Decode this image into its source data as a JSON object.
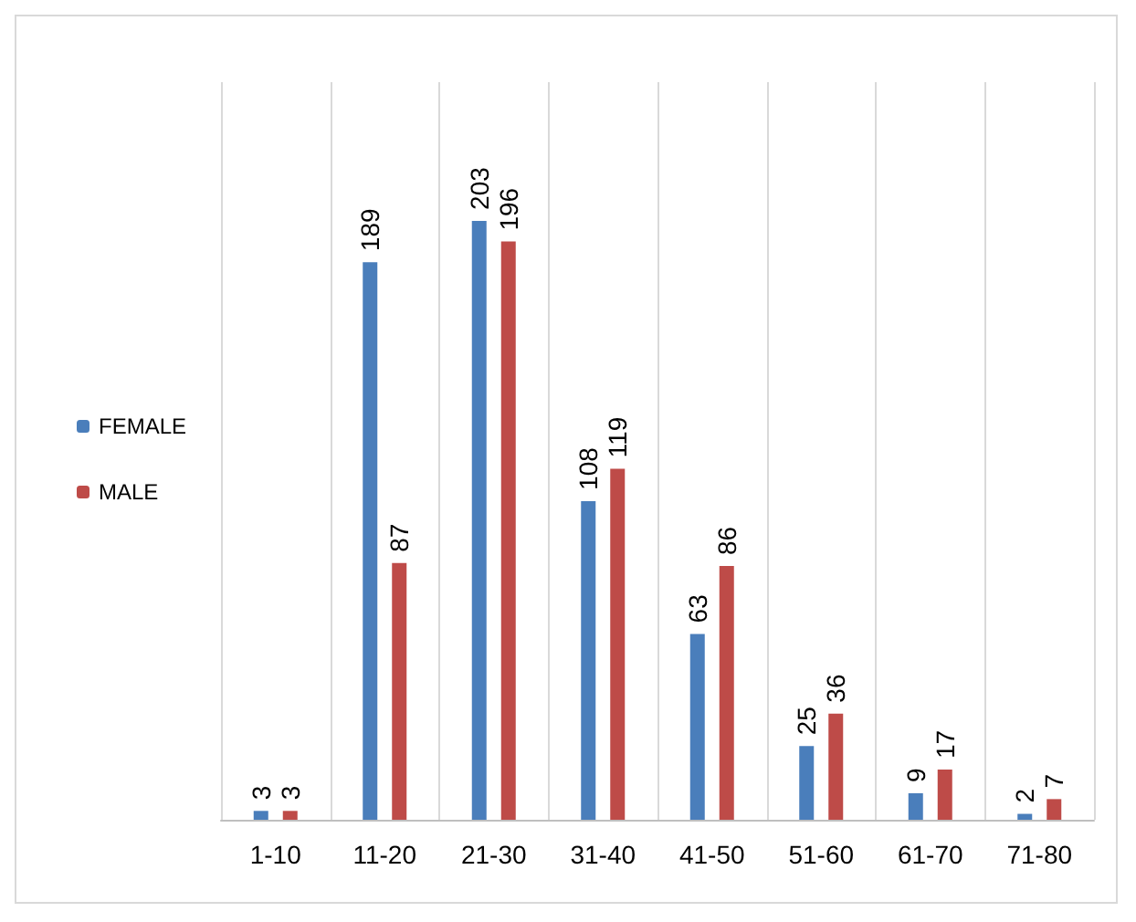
{
  "chart_data": {
    "type": "bar",
    "categories": [
      "1-10",
      "11-20",
      "21-30",
      "31-40",
      "41-50",
      "51-60",
      "61-70",
      "71-80"
    ],
    "series": [
      {
        "name": "FEMALE",
        "color": "#4a7ebb",
        "values": [
          3,
          189,
          203,
          108,
          63,
          25,
          9,
          2
        ]
      },
      {
        "name": "MALE",
        "color": "#be4b48",
        "values": [
          3,
          87,
          196,
          119,
          86,
          36,
          17,
          7
        ]
      }
    ],
    "data_labels": true,
    "grid": "x",
    "legend": "left"
  }
}
